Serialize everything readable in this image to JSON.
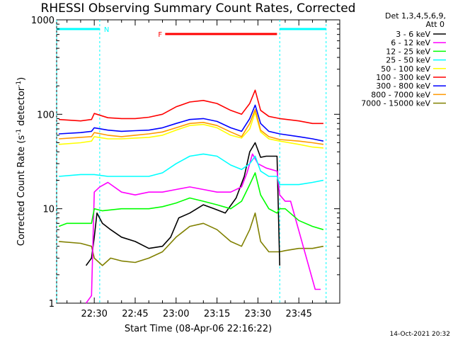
{
  "chart_data": {
    "type": "line",
    "title": "RHESSI Observing Summary Count Rates, Corrected",
    "xlabel": "Start Time (08-Apr-06 22:16:22)",
    "ylabel": "Corrected Count Rate (s⁻¹ detector⁻¹)",
    "ylabel_parts": {
      "main": "Corrected Count Rate (s",
      "e1": "-1",
      "mid": " detector",
      "e2": "-1",
      "end": ")"
    },
    "y_scale": "log",
    "ylim": [
      1,
      1000
    ],
    "y_ticks": [
      "1",
      "10",
      "100",
      "1000"
    ],
    "x_minutes_range": [
      22.27,
      24.0
    ],
    "x_ticks": [
      "22:30",
      "22:45",
      "23:00",
      "23:15",
      "23:30",
      "23:45"
    ],
    "detectors": "Det 1,3,4,5,6,9,",
    "attenuator": "Att 0",
    "footer_date": "14-Oct-2021 20:32",
    "flags": {
      "night": "N",
      "flare": "F"
    },
    "intervals": {
      "night": [
        [
          "22:16",
          "22:32"
        ],
        [
          "23:38",
          "23:55"
        ]
      ],
      "flare": [
        "22:56",
        "23:37"
      ]
    },
    "series": [
      {
        "name": "3 - 6 keV",
        "color": "#000000",
        "x": [
          "22:27",
          "22:29",
          "22:30",
          "22:31",
          "22:33",
          "22:36",
          "22:40",
          "22:45",
          "22:50",
          "22:55",
          "22:58",
          "23:01",
          "23:05",
          "23:10",
          "23:14",
          "23:18",
          "23:22",
          "23:25",
          "23:27",
          "23:29",
          "23:31",
          "23:33",
          "23:36",
          "23:37",
          "23:38"
        ],
        "y": [
          2.5,
          3,
          5,
          9,
          7,
          6,
          5,
          4.5,
          3.8,
          4,
          5,
          8,
          9,
          11,
          10,
          9,
          13,
          22,
          40,
          50,
          35,
          36,
          36,
          36,
          2.5
        ]
      },
      {
        "name": "6 - 12 keV",
        "color": "#ff00ff",
        "x": [
          "22:27",
          "22:29",
          "22:30",
          "22:32",
          "22:35",
          "22:40",
          "22:45",
          "22:50",
          "22:55",
          "23:00",
          "23:05",
          "23:10",
          "23:15",
          "23:20",
          "23:24",
          "23:26",
          "23:28",
          "23:30",
          "23:33",
          "23:37",
          "23:38",
          "23:40",
          "23:42",
          "23:51",
          "23:53"
        ],
        "y": [
          1,
          1.2,
          15,
          17,
          19,
          15,
          14,
          15,
          15,
          16,
          17,
          16,
          15,
          15,
          17,
          24,
          38,
          30,
          27,
          25,
          14,
          12,
          12,
          1.4,
          1.4
        ]
      },
      {
        "name": "12 - 25 keV",
        "color": "#00ff00",
        "x": [
          "22:17",
          "22:20",
          "22:25",
          "22:29",
          "22:30",
          "22:33",
          "22:40",
          "22:45",
          "22:50",
          "22:55",
          "23:00",
          "23:05",
          "23:10",
          "23:15",
          "23:20",
          "23:24",
          "23:27",
          "23:29",
          "23:31",
          "23:34",
          "23:37",
          "23:38",
          "23:40",
          "23:45",
          "23:50",
          "23:54"
        ],
        "y": [
          6.5,
          7,
          7,
          7,
          10,
          9.5,
          10,
          10,
          10,
          10.5,
          11.5,
          13,
          12,
          11,
          10,
          12,
          18,
          24,
          14,
          10,
          9,
          10,
          10,
          7.5,
          6.5,
          6
        ]
      },
      {
        "name": "25 - 50 keV",
        "color": "#00ffff",
        "x": [
          "22:17",
          "22:25",
          "22:30",
          "22:35",
          "22:40",
          "22:45",
          "22:50",
          "22:55",
          "23:00",
          "23:05",
          "23:10",
          "23:15",
          "23:20",
          "23:24",
          "23:27",
          "23:29",
          "23:31",
          "23:34",
          "23:37",
          "23:38",
          "23:45",
          "23:50",
          "23:54"
        ],
        "y": [
          22,
          23,
          23,
          22,
          22,
          22,
          22,
          24,
          30,
          36,
          38,
          36,
          29,
          26,
          30,
          36,
          25,
          22,
          22,
          18,
          18,
          19,
          20
        ]
      },
      {
        "name": "50 - 100 keV",
        "color": "#ffff00",
        "x": [
          "22:17",
          "22:25",
          "22:29",
          "22:30",
          "22:35",
          "22:40",
          "22:45",
          "22:50",
          "22:55",
          "23:00",
          "23:05",
          "23:10",
          "23:15",
          "23:20",
          "23:24",
          "23:27",
          "23:29",
          "23:31",
          "23:34",
          "23:38",
          "23:45",
          "23:50",
          "23:54"
        ],
        "y": [
          48,
          50,
          52,
          58,
          55,
          55,
          56,
          57,
          60,
          68,
          76,
          78,
          72,
          60,
          56,
          70,
          105,
          65,
          55,
          52,
          48,
          45,
          44
        ]
      },
      {
        "name": "100 - 300 keV",
        "color": "#ff0000",
        "x": [
          "22:17",
          "22:25",
          "22:29",
          "22:30",
          "22:35",
          "22:40",
          "22:45",
          "22:50",
          "22:55",
          "23:00",
          "23:05",
          "23:10",
          "23:15",
          "23:20",
          "23:24",
          "23:27",
          "23:29",
          "23:31",
          "23:34",
          "23:38",
          "23:45",
          "23:50",
          "23:54"
        ],
        "y": [
          88,
          85,
          88,
          102,
          92,
          90,
          90,
          93,
          100,
          120,
          135,
          140,
          130,
          110,
          100,
          130,
          180,
          110,
          95,
          90,
          85,
          80,
          80
        ]
      },
      {
        "name": "300 - 800 keV",
        "color": "#0000ff",
        "x": [
          "22:17",
          "22:25",
          "22:29",
          "22:30",
          "22:35",
          "22:40",
          "22:45",
          "22:50",
          "22:55",
          "23:00",
          "23:05",
          "23:10",
          "23:15",
          "23:20",
          "23:24",
          "23:27",
          "23:29",
          "23:31",
          "23:34",
          "23:38",
          "23:45",
          "23:50",
          "23:54"
        ],
        "y": [
          62,
          64,
          66,
          72,
          68,
          66,
          67,
          68,
          72,
          80,
          88,
          90,
          84,
          72,
          66,
          90,
          125,
          80,
          66,
          62,
          58,
          55,
          52
        ]
      },
      {
        "name": "800 - 7000 keV",
        "color": "#ff9900",
        "x": [
          "22:17",
          "22:25",
          "22:29",
          "22:30",
          "22:35",
          "22:40",
          "22:45",
          "22:50",
          "22:55",
          "23:00",
          "23:05",
          "23:10",
          "23:15",
          "23:20",
          "23:24",
          "23:27",
          "23:29",
          "23:31",
          "23:34",
          "23:38",
          "23:45",
          "23:50",
          "23:54"
        ],
        "y": [
          55,
          57,
          58,
          64,
          60,
          58,
          60,
          62,
          65,
          72,
          80,
          82,
          76,
          65,
          58,
          80,
          112,
          68,
          58,
          54,
          52,
          50,
          48
        ]
      },
      {
        "name": "7000 - 15000 keV",
        "color": "#808000",
        "x": [
          "22:17",
          "22:25",
          "22:29",
          "22:30",
          "22:33",
          "22:36",
          "22:40",
          "22:45",
          "22:50",
          "22:55",
          "23:00",
          "23:05",
          "23:10",
          "23:15",
          "23:20",
          "23:24",
          "23:27",
          "23:29",
          "23:31",
          "23:34",
          "23:38",
          "23:40",
          "23:45",
          "23:50",
          "23:54"
        ],
        "y": [
          4.5,
          4.3,
          4.0,
          3.0,
          2.5,
          3.0,
          2.8,
          2.7,
          3.0,
          3.5,
          5.0,
          6.5,
          7.0,
          6.0,
          4.5,
          4.0,
          6.0,
          9.0,
          4.5,
          3.5,
          3.5,
          3.6,
          3.8,
          3.8,
          4.0
        ]
      }
    ]
  }
}
